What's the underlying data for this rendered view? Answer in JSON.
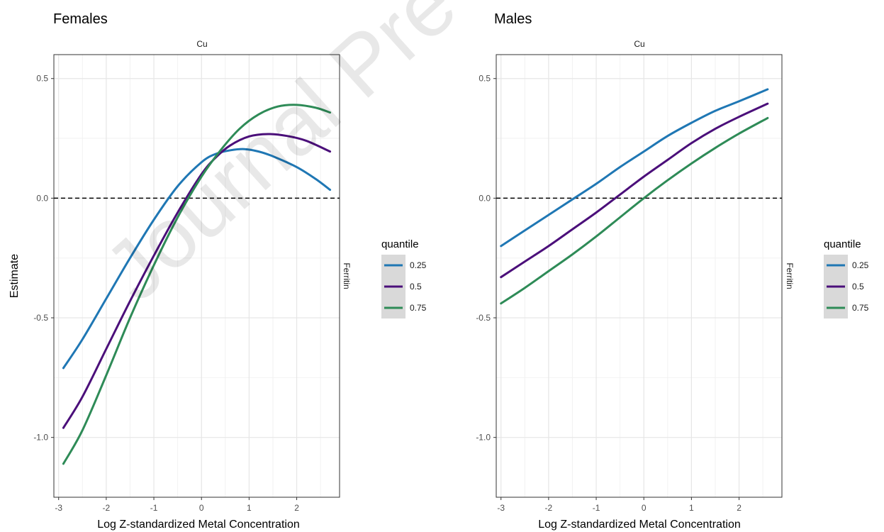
{
  "watermark": "Journal Pre-",
  "chart_data": [
    {
      "type": "line",
      "title": "Females",
      "strip_top": "Cu",
      "strip_right": "Ferritin",
      "xlabel": "Log Z-standardized Metal Concentration",
      "ylabel": "Estimate",
      "xlim": [
        -3.1,
        2.9
      ],
      "ylim": [
        -1.25,
        0.6
      ],
      "xticks": [
        -3,
        -2,
        -1,
        0,
        1,
        2
      ],
      "xtick_labels": [
        "-3",
        "-2",
        "-1",
        "0",
        "1",
        "2"
      ],
      "yticks": [
        -1.0,
        -0.5,
        0.0,
        0.5
      ],
      "ytick_labels": [
        "-1.0",
        "-0.5",
        "0.0",
        "0.5"
      ],
      "reference_line": {
        "y": 0,
        "style": "dashed"
      },
      "grid": true,
      "legend": {
        "title": "quantile",
        "position": "right"
      },
      "series": [
        {
          "name": "0.25",
          "color": "#1f77b4",
          "x": [
            -2.9,
            -2.5,
            -2.0,
            -1.5,
            -1.0,
            -0.5,
            0.0,
            0.3,
            0.6,
            0.9,
            1.2,
            1.5,
            2.0,
            2.4,
            2.7
          ],
          "y": [
            -0.71,
            -0.59,
            -0.42,
            -0.25,
            -0.09,
            0.05,
            0.15,
            0.185,
            0.2,
            0.205,
            0.195,
            0.175,
            0.13,
            0.08,
            0.035
          ]
        },
        {
          "name": "0.5",
          "color": "#4b0f7a",
          "x": [
            -2.9,
            -2.5,
            -2.0,
            -1.5,
            -1.0,
            -0.5,
            0.0,
            0.3,
            0.6,
            1.0,
            1.4,
            1.8,
            2.2,
            2.7
          ],
          "y": [
            -0.96,
            -0.83,
            -0.63,
            -0.43,
            -0.24,
            -0.06,
            0.1,
            0.17,
            0.22,
            0.258,
            0.268,
            0.26,
            0.24,
            0.195
          ]
        },
        {
          "name": "0.75",
          "color": "#2e8b57",
          "x": [
            -2.9,
            -2.5,
            -2.0,
            -1.5,
            -1.0,
            -0.5,
            0.0,
            0.4,
            0.8,
            1.2,
            1.6,
            2.0,
            2.4,
            2.7
          ],
          "y": [
            -1.11,
            -0.97,
            -0.74,
            -0.5,
            -0.28,
            -0.08,
            0.09,
            0.2,
            0.29,
            0.35,
            0.383,
            0.39,
            0.378,
            0.358
          ]
        }
      ]
    },
    {
      "type": "line",
      "title": "Males",
      "strip_top": "Cu",
      "strip_right": "Ferritin",
      "xlabel": "Log Z-standardized Metal Concentration",
      "ylabel": "",
      "xlim": [
        -3.1,
        2.9
      ],
      "ylim": [
        -1.25,
        0.6
      ],
      "xticks": [
        -3,
        -2,
        -1,
        0,
        1,
        2
      ],
      "xtick_labels": [
        "-3",
        "-2",
        "-1",
        "0",
        "1",
        "2"
      ],
      "yticks": [
        -1.0,
        -0.5,
        0.0,
        0.5
      ],
      "ytick_labels": [
        "-1.0",
        "-0.5",
        "0.0",
        "0.5"
      ],
      "reference_line": {
        "y": 0,
        "style": "dashed"
      },
      "grid": true,
      "legend": {
        "title": "quantile",
        "position": "right"
      },
      "series": [
        {
          "name": "0.25",
          "color": "#1f77b4",
          "x": [
            -3.0,
            -2.5,
            -2.0,
            -1.5,
            -1.0,
            -0.5,
            0.0,
            0.5,
            1.0,
            1.5,
            2.0,
            2.6
          ],
          "y": [
            -0.2,
            -0.135,
            -0.07,
            -0.005,
            0.06,
            0.13,
            0.195,
            0.26,
            0.315,
            0.365,
            0.405,
            0.455
          ]
        },
        {
          "name": "0.5",
          "color": "#4b0f7a",
          "x": [
            -3.0,
            -2.5,
            -2.0,
            -1.5,
            -1.0,
            -0.5,
            0.0,
            0.5,
            1.0,
            1.5,
            2.0,
            2.6
          ],
          "y": [
            -0.33,
            -0.265,
            -0.2,
            -0.13,
            -0.06,
            0.015,
            0.09,
            0.16,
            0.23,
            0.29,
            0.34,
            0.395
          ]
        },
        {
          "name": "0.75",
          "color": "#2e8b57",
          "x": [
            -3.0,
            -2.5,
            -2.0,
            -1.5,
            -1.0,
            -0.5,
            0.0,
            0.5,
            1.0,
            1.5,
            2.0,
            2.6
          ],
          "y": [
            -0.44,
            -0.375,
            -0.305,
            -0.235,
            -0.16,
            -0.08,
            0.0,
            0.075,
            0.145,
            0.21,
            0.27,
            0.335
          ]
        }
      ]
    }
  ]
}
